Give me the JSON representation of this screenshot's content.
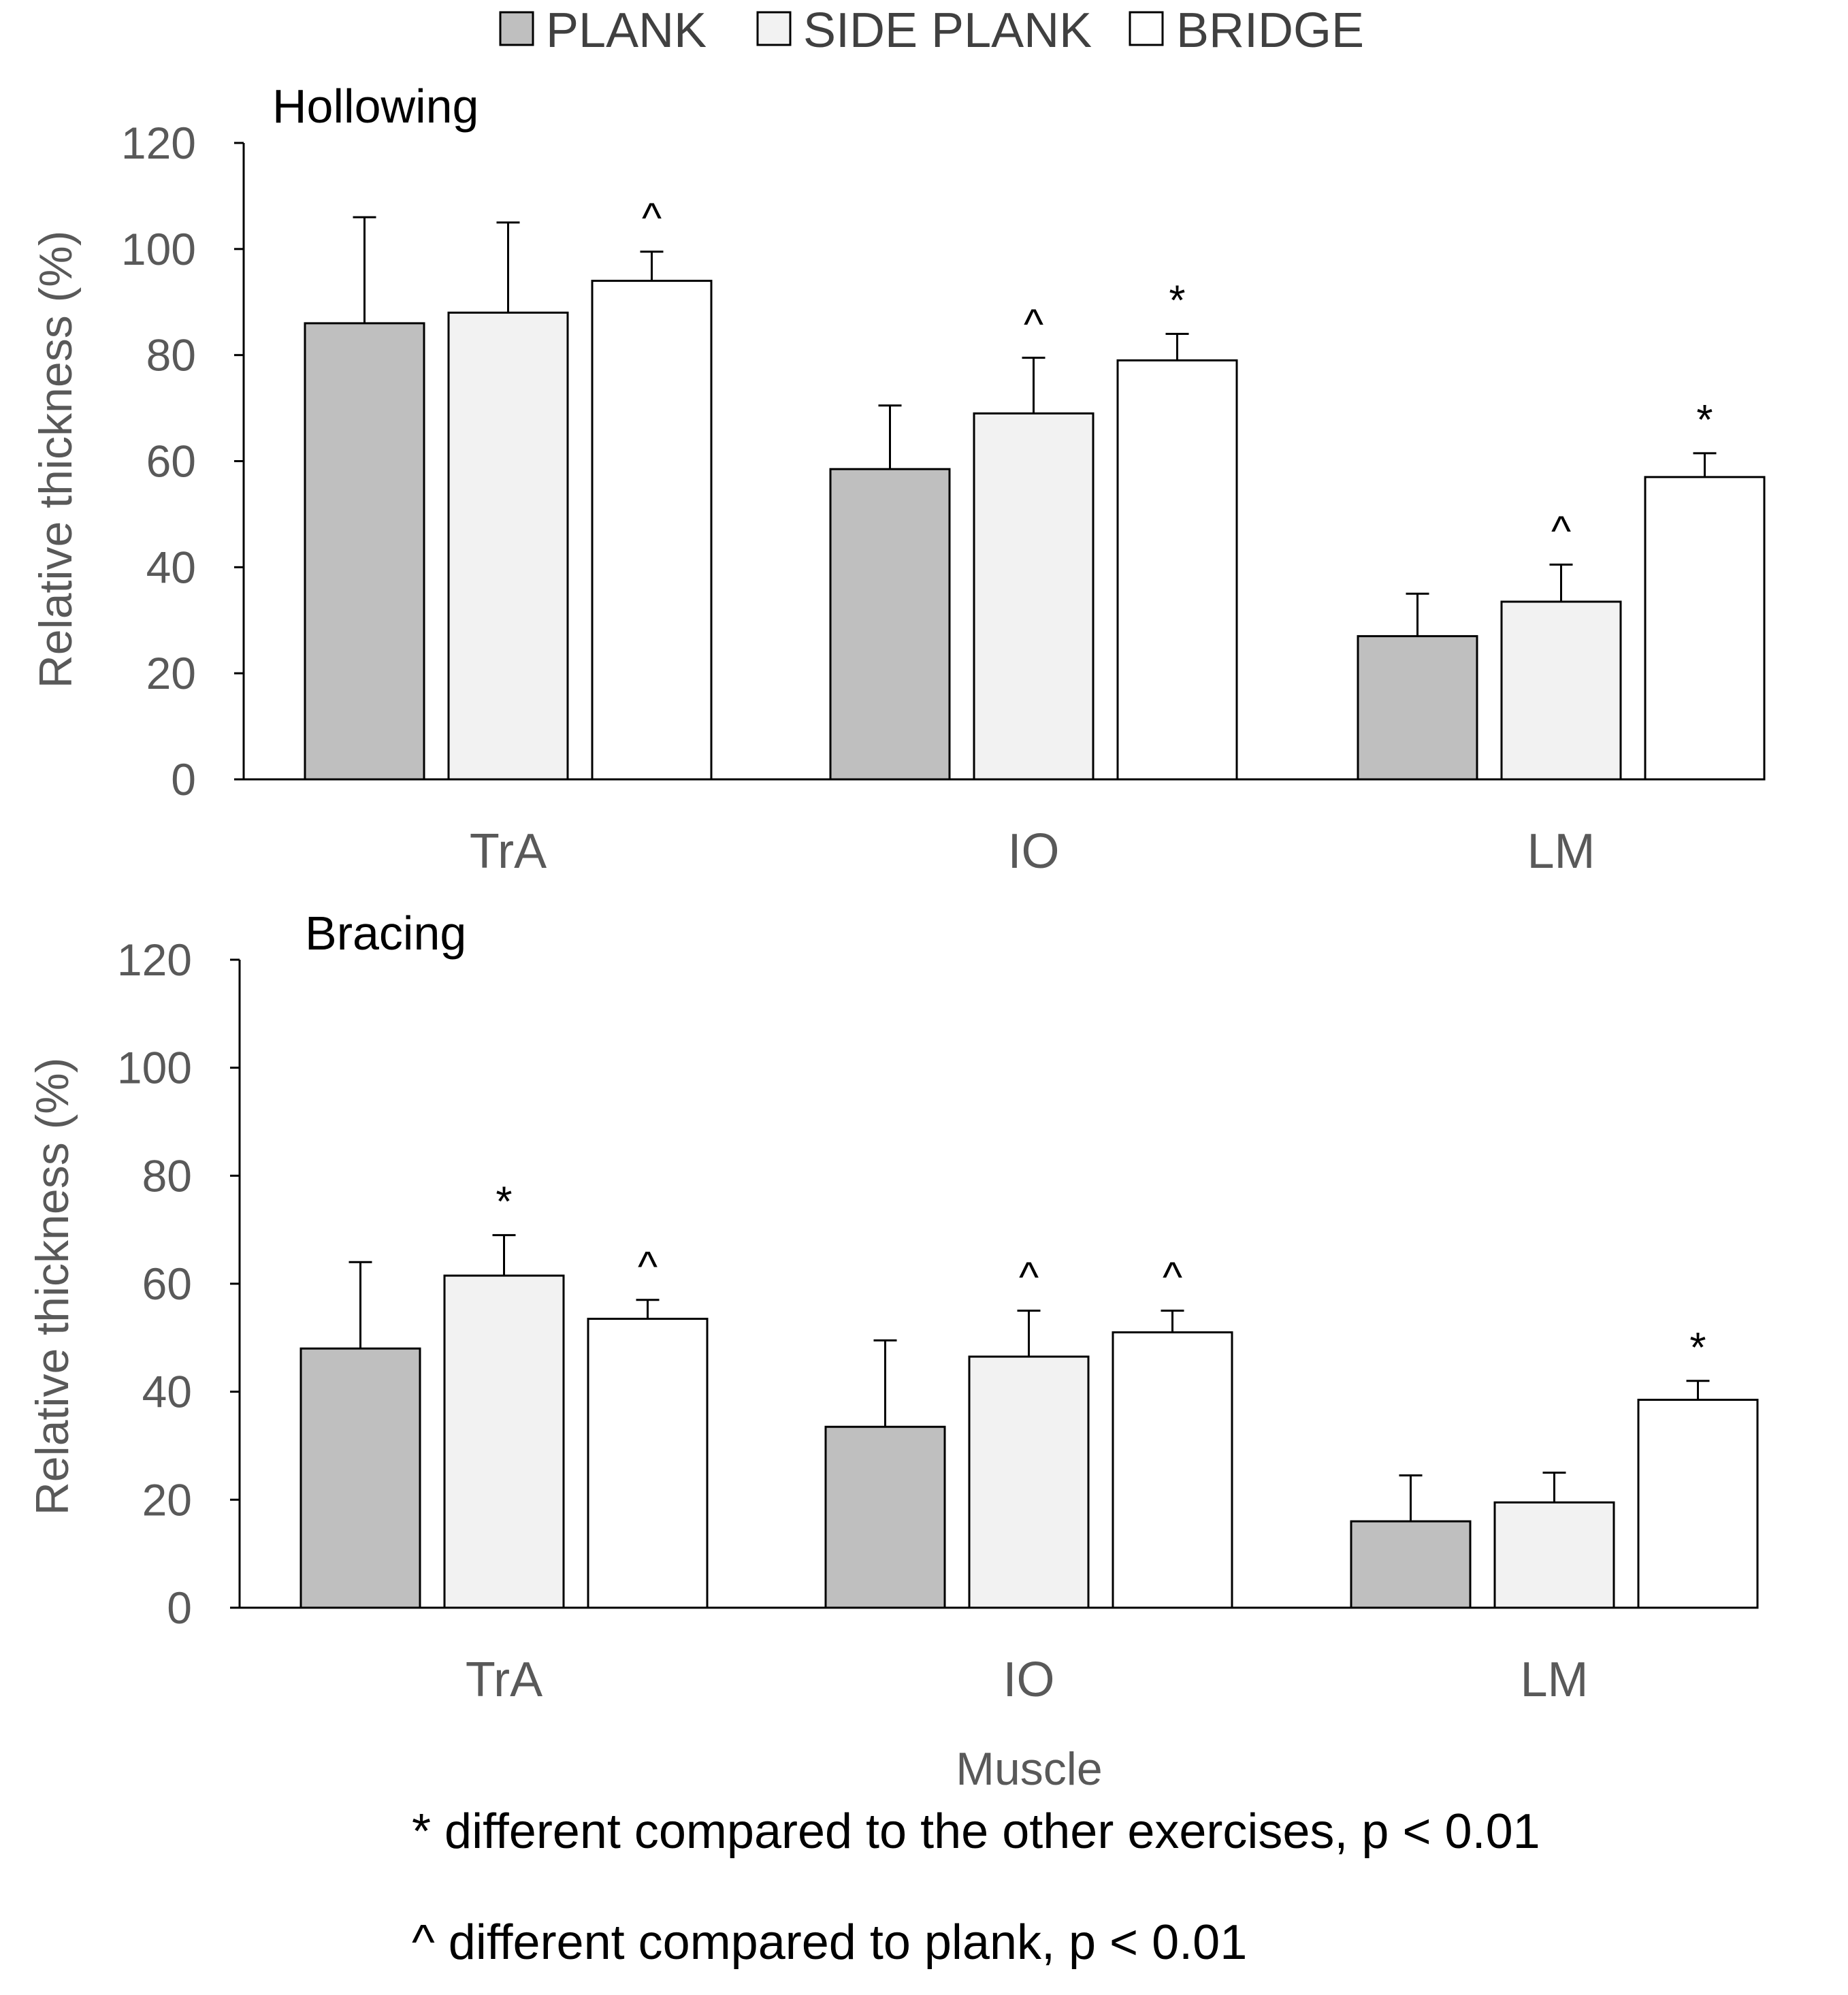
{
  "legend": [
    {
      "label": "PLANK",
      "fill": "#bfbfbf"
    },
    {
      "label": "SIDE PLANK",
      "fill": "#f2f2f2"
    },
    {
      "label": "BRIDGE",
      "fill": "#ffffff"
    }
  ],
  "xaxis_title": "Muscle",
  "footnotes": {
    "star": "* different compared to the other exercises, p < 0.01",
    "caret": "^ different compared to plank, p < 0.01"
  },
  "chart_data": [
    {
      "type": "bar",
      "title": "Hollowing",
      "xlabel": "",
      "ylabel": "Relative thickness (%)",
      "ylim": [
        0,
        120
      ],
      "yticks": [
        "0",
        "20",
        "40",
        "60",
        "80",
        "100",
        "120"
      ],
      "categories": [
        "TrA",
        "IO",
        "LM"
      ],
      "series": [
        {
          "name": "PLANK",
          "values": [
            86,
            58.5,
            27
          ],
          "errors": [
            20,
            12,
            8
          ],
          "marks": [
            "",
            "",
            ""
          ]
        },
        {
          "name": "SIDE PLANK",
          "values": [
            88,
            69,
            33.5
          ],
          "errors": [
            17,
            10.5,
            7
          ],
          "marks": [
            "",
            "^",
            "^"
          ]
        },
        {
          "name": "BRIDGE",
          "values": [
            94,
            79,
            57
          ],
          "errors": [
            5.5,
            5,
            4.5
          ],
          "marks": [
            "^",
            "*",
            "*"
          ]
        }
      ]
    },
    {
      "type": "bar",
      "title": "Bracing",
      "xlabel": "Muscle",
      "ylabel": "Relative thickness  (%)",
      "ylim": [
        0,
        120
      ],
      "yticks": [
        "0",
        "20",
        "40",
        "60",
        "80",
        "100",
        "120"
      ],
      "categories": [
        "TrA",
        "IO",
        "LM"
      ],
      "series": [
        {
          "name": "PLANK",
          "values": [
            48,
            33.5,
            16
          ],
          "errors": [
            16,
            16,
            8.5
          ],
          "marks": [
            "",
            "",
            ""
          ]
        },
        {
          "name": "SIDE PLANK",
          "values": [
            61.5,
            46.5,
            19.5
          ],
          "errors": [
            7.5,
            8.5,
            5.5
          ],
          "marks": [
            "*",
            "^",
            ""
          ]
        },
        {
          "name": "BRIDGE",
          "values": [
            53.5,
            51,
            38.5
          ],
          "errors": [
            3.5,
            4,
            3.5
          ],
          "marks": [
            "^",
            "^",
            "*"
          ]
        }
      ]
    }
  ]
}
